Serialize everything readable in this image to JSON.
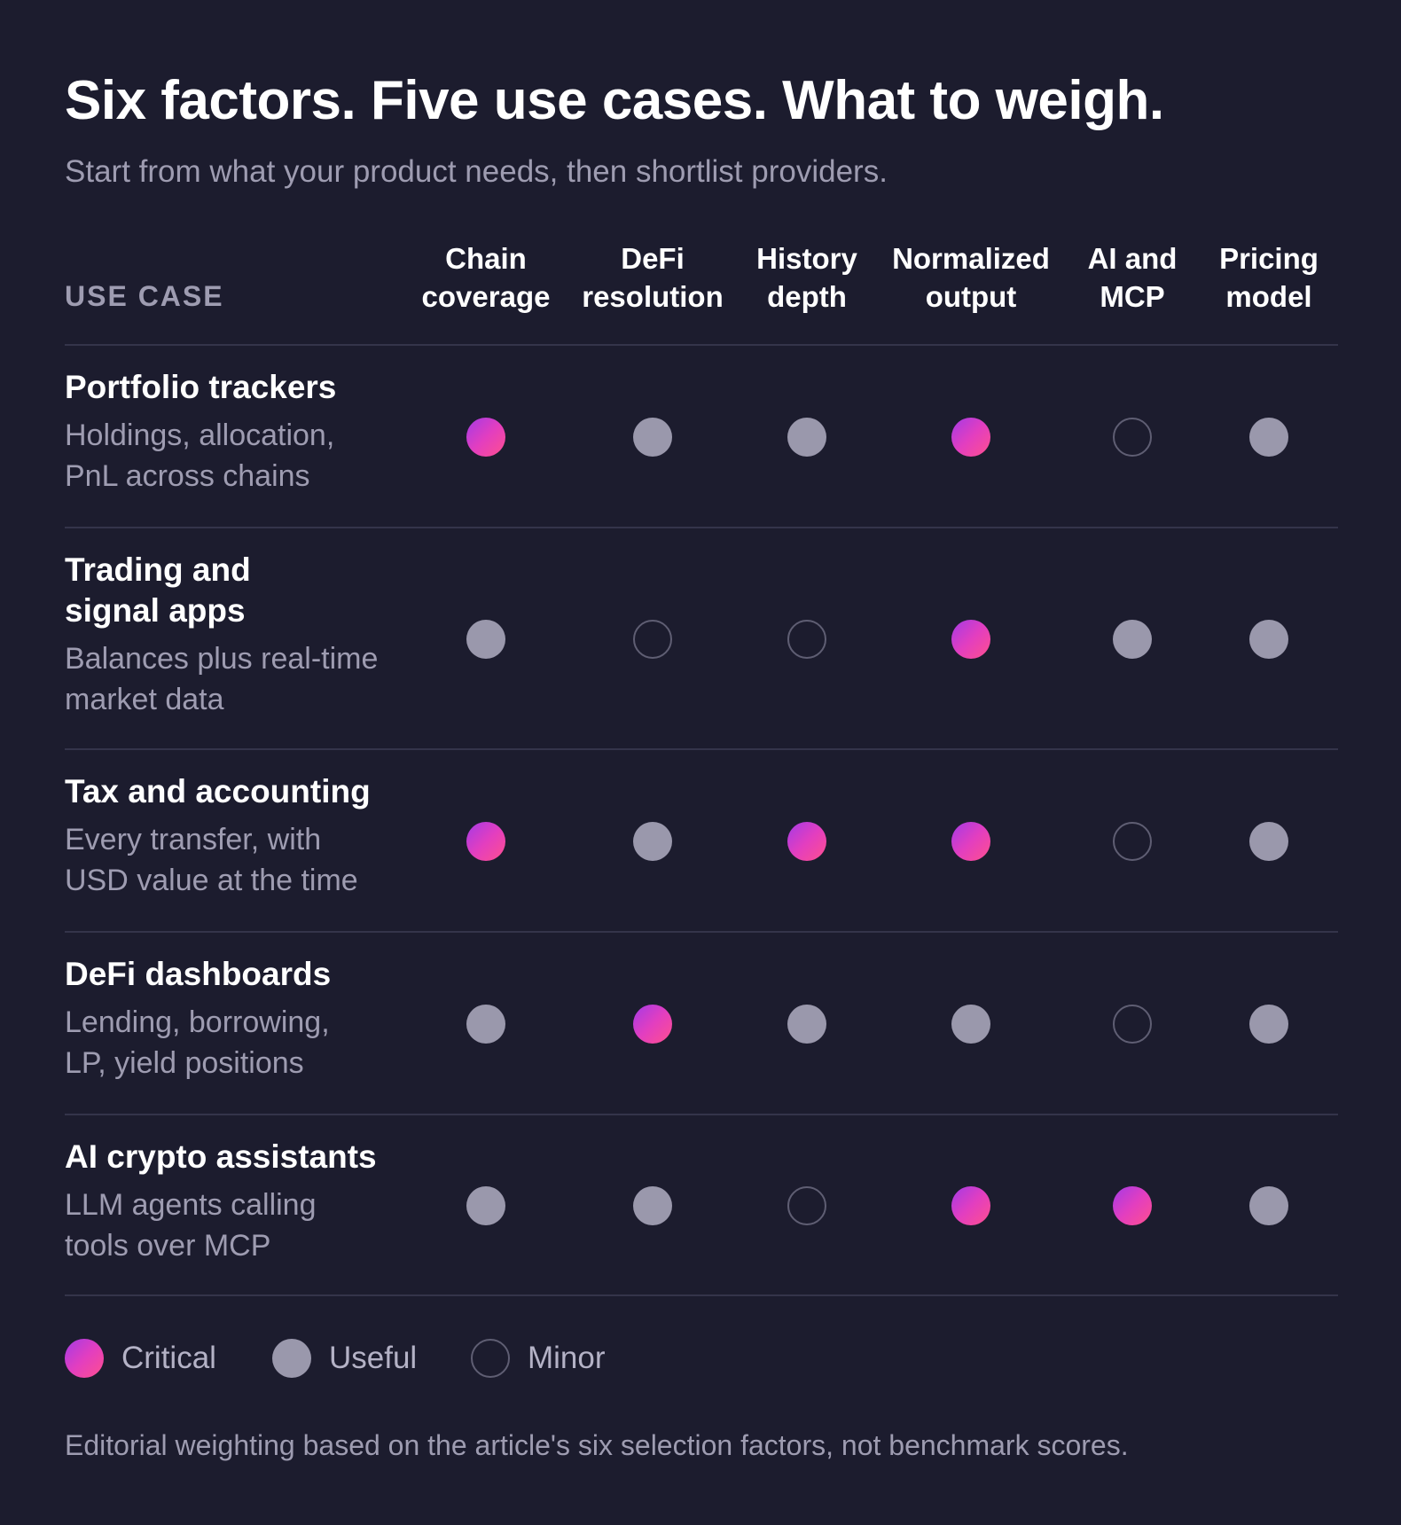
{
  "title": "Six factors. Five use cases. What to weigh.",
  "subtitle": "Start from what your product needs, then shortlist providers.",
  "use_case_header": "USE CASE",
  "chart_data": {
    "type": "table",
    "factors": [
      [
        "Chain",
        "coverage"
      ],
      [
        "DeFi",
        "resolution"
      ],
      [
        "History",
        "depth"
      ],
      [
        "Normalized",
        "output"
      ],
      [
        "AI and",
        "MCP"
      ],
      [
        "Pricing",
        "model"
      ]
    ],
    "rows": [
      {
        "title": [
          "Portfolio trackers"
        ],
        "desc": [
          "Holdings, allocation,",
          "PnL across chains"
        ],
        "values": [
          "critical",
          "useful",
          "useful",
          "critical",
          "minor",
          "useful"
        ]
      },
      {
        "title": [
          "Trading and",
          "signal apps"
        ],
        "desc": [
          "Balances plus real-time",
          "market data"
        ],
        "values": [
          "useful",
          "minor",
          "minor",
          "critical",
          "useful",
          "useful"
        ]
      },
      {
        "title": [
          "Tax and accounting"
        ],
        "desc": [
          "Every transfer, with",
          "USD value at the time"
        ],
        "values": [
          "critical",
          "useful",
          "critical",
          "critical",
          "minor",
          "useful"
        ]
      },
      {
        "title": [
          "DeFi dashboards"
        ],
        "desc": [
          "Lending, borrowing,",
          "LP, yield positions"
        ],
        "values": [
          "useful",
          "critical",
          "useful",
          "useful",
          "minor",
          "useful"
        ]
      },
      {
        "title": [
          "AI crypto assistants"
        ],
        "desc": [
          "LLM agents calling",
          "tools over MCP"
        ],
        "values": [
          "useful",
          "useful",
          "minor",
          "critical",
          "critical",
          "useful"
        ]
      }
    ],
    "legend": [
      {
        "key": "critical",
        "label": "Critical"
      },
      {
        "key": "useful",
        "label": "Useful"
      },
      {
        "key": "minor",
        "label": "Minor"
      }
    ],
    "colors": {
      "background": "#1c1c2e",
      "critical_gradient": [
        "#a43be6",
        "#ff4f8e"
      ],
      "useful": "#9a98ac",
      "minor_outline": "#5f5e73"
    }
  },
  "footnote": "Editorial weighting based on the article's six selection factors, not benchmark scores."
}
